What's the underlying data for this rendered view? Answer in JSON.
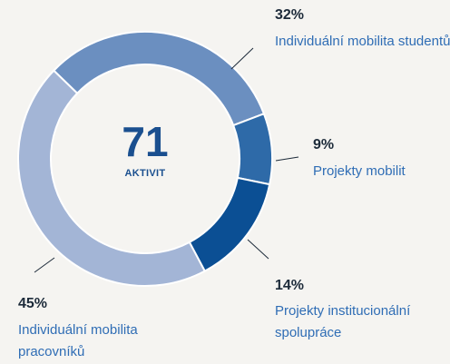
{
  "chart_data": {
    "type": "donut",
    "center_value": "71",
    "center_label": "AKTIVIT",
    "categories": [
      "Individuální mobilita studentů",
      "Projekty mobilit",
      "Projekty institucionální spolupráce",
      "Individuální mobilita pracovníků"
    ],
    "values": [
      32,
      9,
      14,
      45
    ],
    "value_labels": [
      "32%",
      "9%",
      "14%",
      "45%"
    ],
    "colors": [
      "#6b8fc0",
      "#2e6aa8",
      "#0b4f94",
      "#a3b5d6"
    ]
  }
}
